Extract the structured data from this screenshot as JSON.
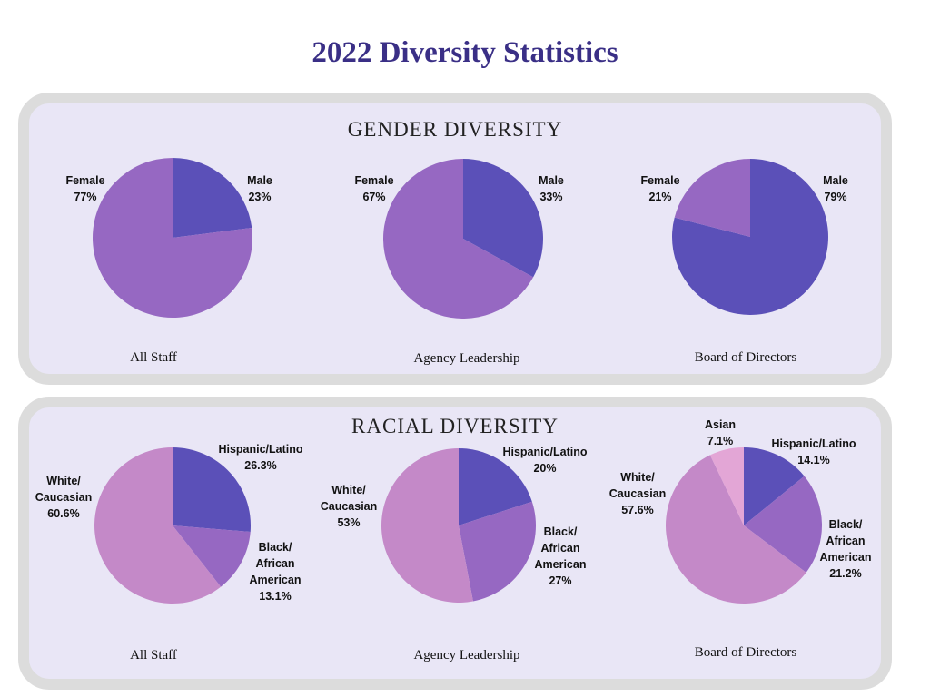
{
  "title": "2022 Diversity Statistics",
  "colors": {
    "male": "#5b50b8",
    "female": "#9668c2",
    "hispanic_latino": "#5b50b8",
    "black_african_american": "#9668c2",
    "white_caucasian": "#c489c8",
    "asian": "#e3a6d6"
  },
  "sections": [
    {
      "heading": "GENDER DIVERSITY"
    },
    {
      "heading": "RACIAL DIVERSITY"
    }
  ],
  "chart_data": [
    {
      "type": "pie",
      "section": "GENDER DIVERSITY",
      "caption": "All Staff",
      "slices": [
        {
          "label": [
            "Male",
            "23%"
          ],
          "value": 23,
          "color_key": "male"
        },
        {
          "label": [
            "Female",
            "77%"
          ],
          "value": 77,
          "color_key": "female"
        }
      ]
    },
    {
      "type": "pie",
      "section": "GENDER DIVERSITY",
      "caption": "Agency Leadership",
      "slices": [
        {
          "label": [
            "Male",
            "33%"
          ],
          "value": 33,
          "color_key": "male"
        },
        {
          "label": [
            "Female",
            "67%"
          ],
          "value": 67,
          "color_key": "female"
        }
      ]
    },
    {
      "type": "pie",
      "section": "GENDER DIVERSITY",
      "caption": "Board of Directors",
      "slices": [
        {
          "label": [
            "Male",
            "79%"
          ],
          "value": 79,
          "color_key": "male"
        },
        {
          "label": [
            "Female",
            "21%"
          ],
          "value": 21,
          "color_key": "female"
        }
      ]
    },
    {
      "type": "pie",
      "section": "RACIAL DIVERSITY",
      "caption": "All Staff",
      "slices": [
        {
          "label": [
            "Hispanic/Latino",
            "26.3%"
          ],
          "value": 26.3,
          "color_key": "hispanic_latino"
        },
        {
          "label": [
            "Black/",
            "African",
            "American",
            "13.1%"
          ],
          "value": 13.1,
          "color_key": "black_african_american"
        },
        {
          "label": [
            "White/",
            "Caucasian",
            "60.6%"
          ],
          "value": 60.6,
          "color_key": "white_caucasian"
        }
      ]
    },
    {
      "type": "pie",
      "section": "RACIAL DIVERSITY",
      "caption": "Agency Leadership",
      "slices": [
        {
          "label": [
            "Hispanic/Latino",
            "20%"
          ],
          "value": 20,
          "color_key": "hispanic_latino"
        },
        {
          "label": [
            "Black/",
            "African",
            "American",
            "27%"
          ],
          "value": 27,
          "color_key": "black_african_american"
        },
        {
          "label": [
            "White/",
            "Caucasian",
            "53%"
          ],
          "value": 53,
          "color_key": "white_caucasian"
        }
      ]
    },
    {
      "type": "pie",
      "section": "RACIAL DIVERSITY",
      "caption": "Board of Directors",
      "slices": [
        {
          "label": [
            "Hispanic/Latino",
            "14.1%"
          ],
          "value": 14.1,
          "color_key": "hispanic_latino"
        },
        {
          "label": [
            "Black/",
            "African",
            "American",
            "21.2%"
          ],
          "value": 21.2,
          "color_key": "black_african_american"
        },
        {
          "label": [
            "White/",
            "Caucasian",
            "57.6%"
          ],
          "value": 57.6,
          "color_key": "white_caucasian"
        },
        {
          "label": [
            "Asian",
            "7.1%"
          ],
          "value": 7.1,
          "color_key": "asian"
        }
      ]
    }
  ]
}
